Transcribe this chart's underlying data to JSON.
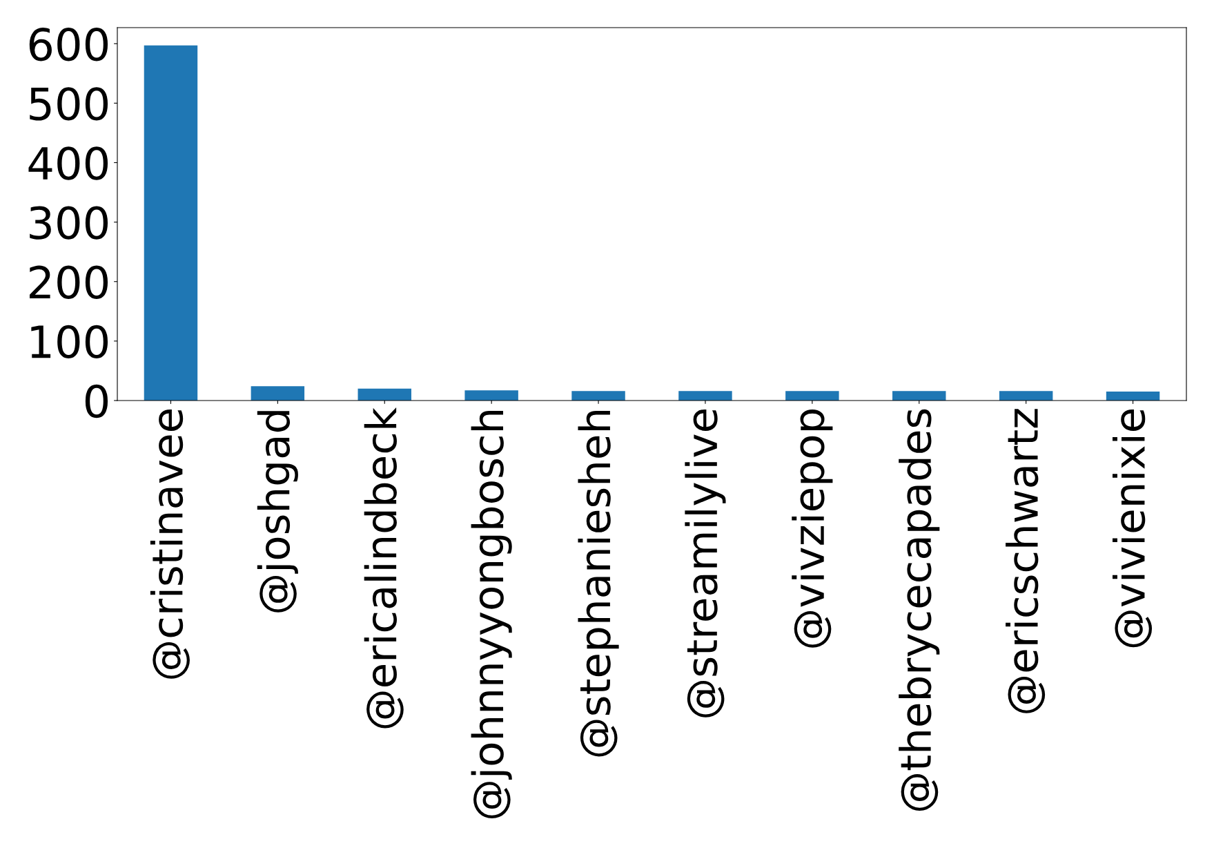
{
  "chart_data": {
    "type": "bar",
    "categories": [
      "@cristinavee",
      "@joshgad",
      "@ericalindbeck",
      "@johnnyyongbosch",
      "@stephaniesheh",
      "@streamilylive",
      "@vivziepop",
      "@thebrycecapades",
      "@ericschwartz",
      "@vivienixie"
    ],
    "values": [
      597,
      24,
      20,
      17,
      16,
      16,
      16,
      16,
      16,
      15
    ],
    "color": "#1f77b4",
    "ylim": [
      0,
      627
    ],
    "yticks": [
      0,
      100,
      200,
      300,
      400,
      500,
      600
    ],
    "grid": false
  }
}
